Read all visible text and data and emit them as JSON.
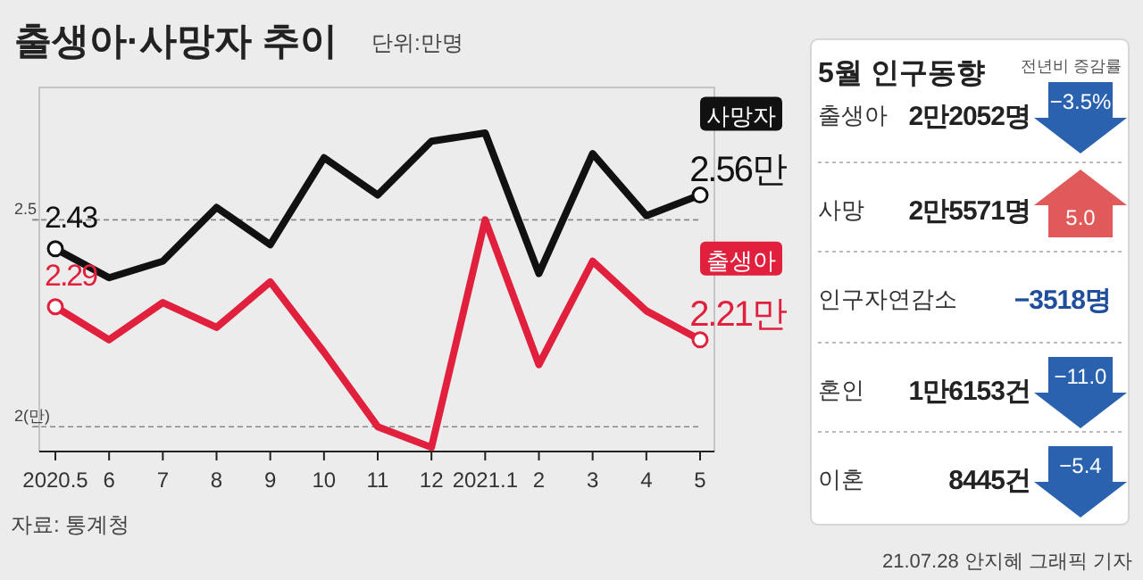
{
  "chart_data": [
    {
      "type": "line",
      "title": "출생아·사망자 추이",
      "subtitle": "단위:만명",
      "categories": [
        "2020.5",
        "6",
        "7",
        "8",
        "9",
        "10",
        "11",
        "12",
        "2021.1",
        "2",
        "3",
        "4",
        "5"
      ],
      "series": [
        {
          "name": "사망자",
          "color": "#111111",
          "values": [
            2.43,
            2.36,
            2.4,
            2.53,
            2.44,
            2.65,
            2.56,
            2.69,
            2.71,
            2.37,
            2.66,
            2.51,
            2.56
          ],
          "value_labels": [
            "2.43",
            null,
            null,
            null,
            null,
            null,
            null,
            null,
            null,
            null,
            null,
            null,
            "2.56만"
          ]
        },
        {
          "name": "출생아",
          "color": "#e0203c",
          "values": [
            2.29,
            2.21,
            2.3,
            2.24,
            2.35,
            2.18,
            2.0,
            1.95,
            2.5,
            2.15,
            2.4,
            2.28,
            2.21
          ],
          "value_labels": [
            "2.29",
            null,
            null,
            null,
            null,
            null,
            null,
            null,
            null,
            null,
            null,
            null,
            "2.21만"
          ]
        }
      ],
      "ylim": [
        1.94,
        2.82
      ],
      "yticks": [
        {
          "value": 2,
          "label": "2(만)"
        },
        2.5
      ],
      "grid": "y",
      "line_style": "solid",
      "annotations": [
        "자료: 통계청",
        "21.07.28 안지혜 그래픽 기자"
      ]
    },
    {
      "type": "other",
      "title": "5월 인구동향",
      "subtitle": "전년비 증감률",
      "categories": [
        "출생아",
        "사망",
        "인구자연감소",
        "혼인",
        "이혼"
      ],
      "annotations": [
        "2만2052명",
        "2만5571명",
        "−3518명",
        "1만6153건",
        "8445건"
      ],
      "values": [
        -3.5,
        5.0,
        null,
        -11.0,
        -5.4
      ],
      "value_labels": [
        "−3.5%",
        "5.0",
        null,
        "−11.0",
        "−5.4"
      ]
    }
  ]
}
